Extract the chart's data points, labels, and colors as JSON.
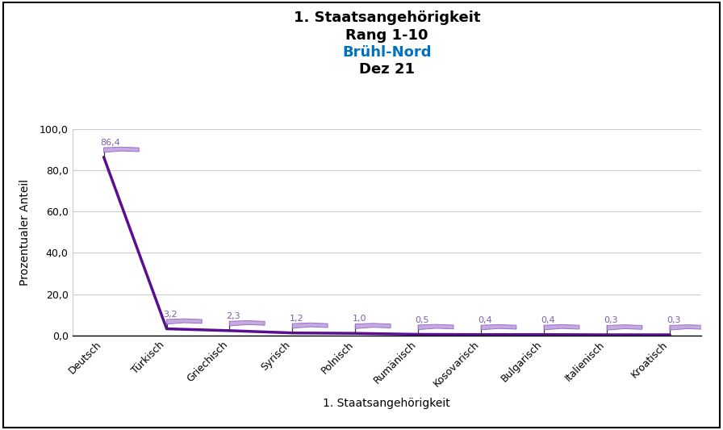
{
  "title_line1": "1. Staatsangehörigkeit",
  "title_line2": "Rang 1-10",
  "title_line3": "Brühl-Nord",
  "title_line4": "Dez 21",
  "title_line3_color": "#0070C0",
  "title_color": "#000000",
  "xlabel": "1. Staatsangehörigkeit",
  "ylabel": "Prozentualer Anteil",
  "categories": [
    "Deutsch",
    "Türkisch",
    "Griechisch",
    "Syrisch",
    "Polnisch",
    "Rumänisch",
    "Kosovarisch",
    "Bulgarisch",
    "Italienisch",
    "Kroatisch"
  ],
  "values": [
    86.4,
    3.2,
    2.3,
    1.2,
    1.0,
    0.5,
    0.4,
    0.4,
    0.3,
    0.3
  ],
  "labels": [
    "86,4",
    "3,2",
    "2,3",
    "1,2",
    "1,0",
    "0,5",
    "0,4",
    "0,4",
    "0,3",
    "0,3"
  ],
  "line_color": "#5B0E91",
  "flag_fill_color": "#C4AADF",
  "flag_edge_color": "#9B70C8",
  "pole_color": "#333333",
  "label_color": "#7B5EA7",
  "ylim": [
    0,
    100
  ],
  "yticks": [
    0.0,
    20.0,
    40.0,
    60.0,
    80.0,
    100.0
  ],
  "background_color": "#FFFFFF",
  "grid_color": "#CCCCCC",
  "border_color": "#000000",
  "title_fontsize": 13,
  "axis_label_fontsize": 10,
  "tick_fontsize": 9,
  "data_label_fontsize": 8
}
